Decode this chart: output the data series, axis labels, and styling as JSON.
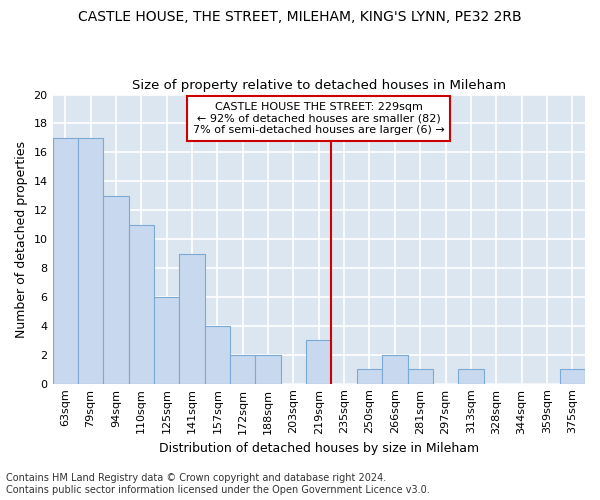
{
  "title1": "CASTLE HOUSE, THE STREET, MILEHAM, KING'S LYNN, PE32 2RB",
  "title2": "Size of property relative to detached houses in Mileham",
  "xlabel": "Distribution of detached houses by size in Mileham",
  "ylabel": "Number of detached properties",
  "footer1": "Contains HM Land Registry data © Crown copyright and database right 2024.",
  "footer2": "Contains public sector information licensed under the Open Government Licence v3.0.",
  "categories": [
    "63sqm",
    "79sqm",
    "94sqm",
    "110sqm",
    "125sqm",
    "141sqm",
    "157sqm",
    "172sqm",
    "188sqm",
    "203sqm",
    "219sqm",
    "235sqm",
    "250sqm",
    "266sqm",
    "281sqm",
    "297sqm",
    "313sqm",
    "328sqm",
    "344sqm",
    "359sqm",
    "375sqm"
  ],
  "values": [
    17,
    17,
    13,
    11,
    6,
    9,
    4,
    2,
    2,
    0,
    3,
    0,
    1,
    2,
    1,
    0,
    1,
    0,
    0,
    0,
    1
  ],
  "bar_color": "#c8d8ee",
  "bar_edge_color": "#7baad4",
  "vline_index": 11,
  "vline_color": "#cc0000",
  "annotation_text": "CASTLE HOUSE THE STREET: 229sqm\n← 92% of detached houses are smaller (82)\n7% of semi-detached houses are larger (6) →",
  "annotation_box_color": "#ffffff",
  "annotation_box_edge_color": "#cc0000",
  "ylim": [
    0,
    20
  ],
  "yticks": [
    0,
    2,
    4,
    6,
    8,
    10,
    12,
    14,
    16,
    18,
    20
  ],
  "fig_background_color": "#ffffff",
  "plot_background_color": "#dce6f0",
  "grid_color": "#ffffff",
  "title1_fontsize": 10,
  "title2_fontsize": 9.5,
  "annotation_fontsize": 8,
  "xlabel_fontsize": 9,
  "ylabel_fontsize": 9,
  "footer_fontsize": 7,
  "tick_fontsize": 8
}
